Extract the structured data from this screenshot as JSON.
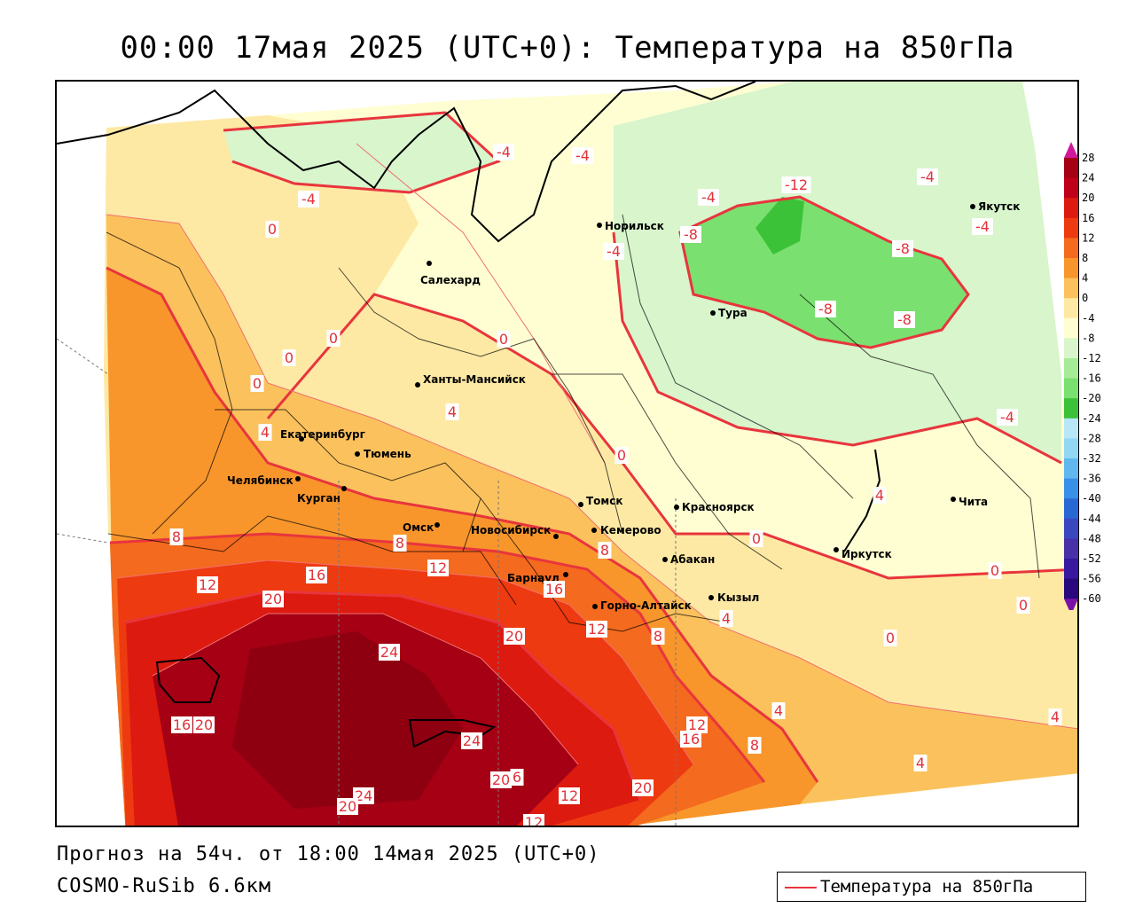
{
  "title": "00:00 17мая 2025 (UTC+0): Температура на 850гПа",
  "forecast_text": "Прогноз на 54ч. от 18:00 14мая 2025 (UTC+0)",
  "model_text": "COSMO-RuSib 6.6км",
  "legend": {
    "label": "Температура на 850гПа",
    "line_color": "#e8353d"
  },
  "colorbar": {
    "ticks": [
      "28",
      "24",
      "20",
      "16",
      "12",
      "8",
      "4",
      "0",
      "-4",
      "-8",
      "-12",
      "-16",
      "-20",
      "-24",
      "-28",
      "-32",
      "-36",
      "-40",
      "-44",
      "-48",
      "-52",
      "-56",
      "-60"
    ],
    "colors": [
      "#a50014",
      "#c00018",
      "#dc1a10",
      "#ee3a10",
      "#f46a1e",
      "#f8962c",
      "#fbc15c",
      "#fde9a4",
      "#fefed2",
      "#d8f5cc",
      "#a6ec96",
      "#7ae070",
      "#3cc238",
      "#b8e8f8",
      "#92d8f4",
      "#60b8ee",
      "#3890e8",
      "#2868d4",
      "#3a48c0",
      "#4830a8",
      "#3818a0",
      "#28087c"
    ],
    "top_cap_color": "#d0189c",
    "bottom_cap_color": "#7a10a8"
  },
  "cities": [
    {
      "name": "Якутск"
    },
    {
      "name": "Норильск"
    },
    {
      "name": "Салехард"
    },
    {
      "name": "Тура"
    },
    {
      "name": "Ханты-Мансийск"
    },
    {
      "name": "Екатеринбург"
    },
    {
      "name": "Тюмень"
    },
    {
      "name": "Челябинск"
    },
    {
      "name": "Курган"
    },
    {
      "name": "Омск"
    },
    {
      "name": "Новосибирск"
    },
    {
      "name": "Томск"
    },
    {
      "name": "Кемерово"
    },
    {
      "name": "Красноярск"
    },
    {
      "name": "Абакан"
    },
    {
      "name": "Барнаул"
    },
    {
      "name": "Горно-Алтайск"
    },
    {
      "name": "Кызыл"
    },
    {
      "name": "Иркутск"
    },
    {
      "name": "Чита"
    }
  ],
  "isotherm_labels": [
    {
      "t": "-4"
    },
    {
      "t": "-4"
    },
    {
      "t": "-4"
    },
    {
      "t": "-4"
    },
    {
      "t": "-12"
    },
    {
      "t": "-4"
    },
    {
      "t": "-8"
    },
    {
      "t": "-8"
    },
    {
      "t": "-4"
    },
    {
      "t": "-8"
    },
    {
      "t": "-8"
    },
    {
      "t": "-4"
    },
    {
      "t": "-4"
    },
    {
      "t": "0"
    },
    {
      "t": "0"
    },
    {
      "t": "0"
    },
    {
      "t": "0"
    },
    {
      "t": "0"
    },
    {
      "t": "4"
    },
    {
      "t": "4"
    },
    {
      "t": "0"
    },
    {
      "t": "4"
    },
    {
      "t": "8"
    },
    {
      "t": "8"
    },
    {
      "t": "12"
    },
    {
      "t": "8"
    },
    {
      "t": "12"
    },
    {
      "t": "16"
    },
    {
      "t": "20"
    },
    {
      "t": "16"
    },
    {
      "t": "12"
    },
    {
      "t": "8"
    },
    {
      "t": "4"
    },
    {
      "t": "0"
    },
    {
      "t": "0"
    },
    {
      "t": "0"
    },
    {
      "t": "0"
    },
    {
      "t": "24"
    },
    {
      "t": "20"
    },
    {
      "t": "16"
    },
    {
      "t": "20"
    },
    {
      "t": "24"
    },
    {
      "t": "12"
    },
    {
      "t": "16"
    },
    {
      "t": "8"
    },
    {
      "t": "4"
    },
    {
      "t": "4"
    },
    {
      "t": "4"
    },
    {
      "t": "20"
    },
    {
      "t": "6"
    },
    {
      "t": "12"
    },
    {
      "t": "20"
    },
    {
      "t": "24"
    },
    {
      "t": "20"
    },
    {
      "t": "12"
    }
  ]
}
